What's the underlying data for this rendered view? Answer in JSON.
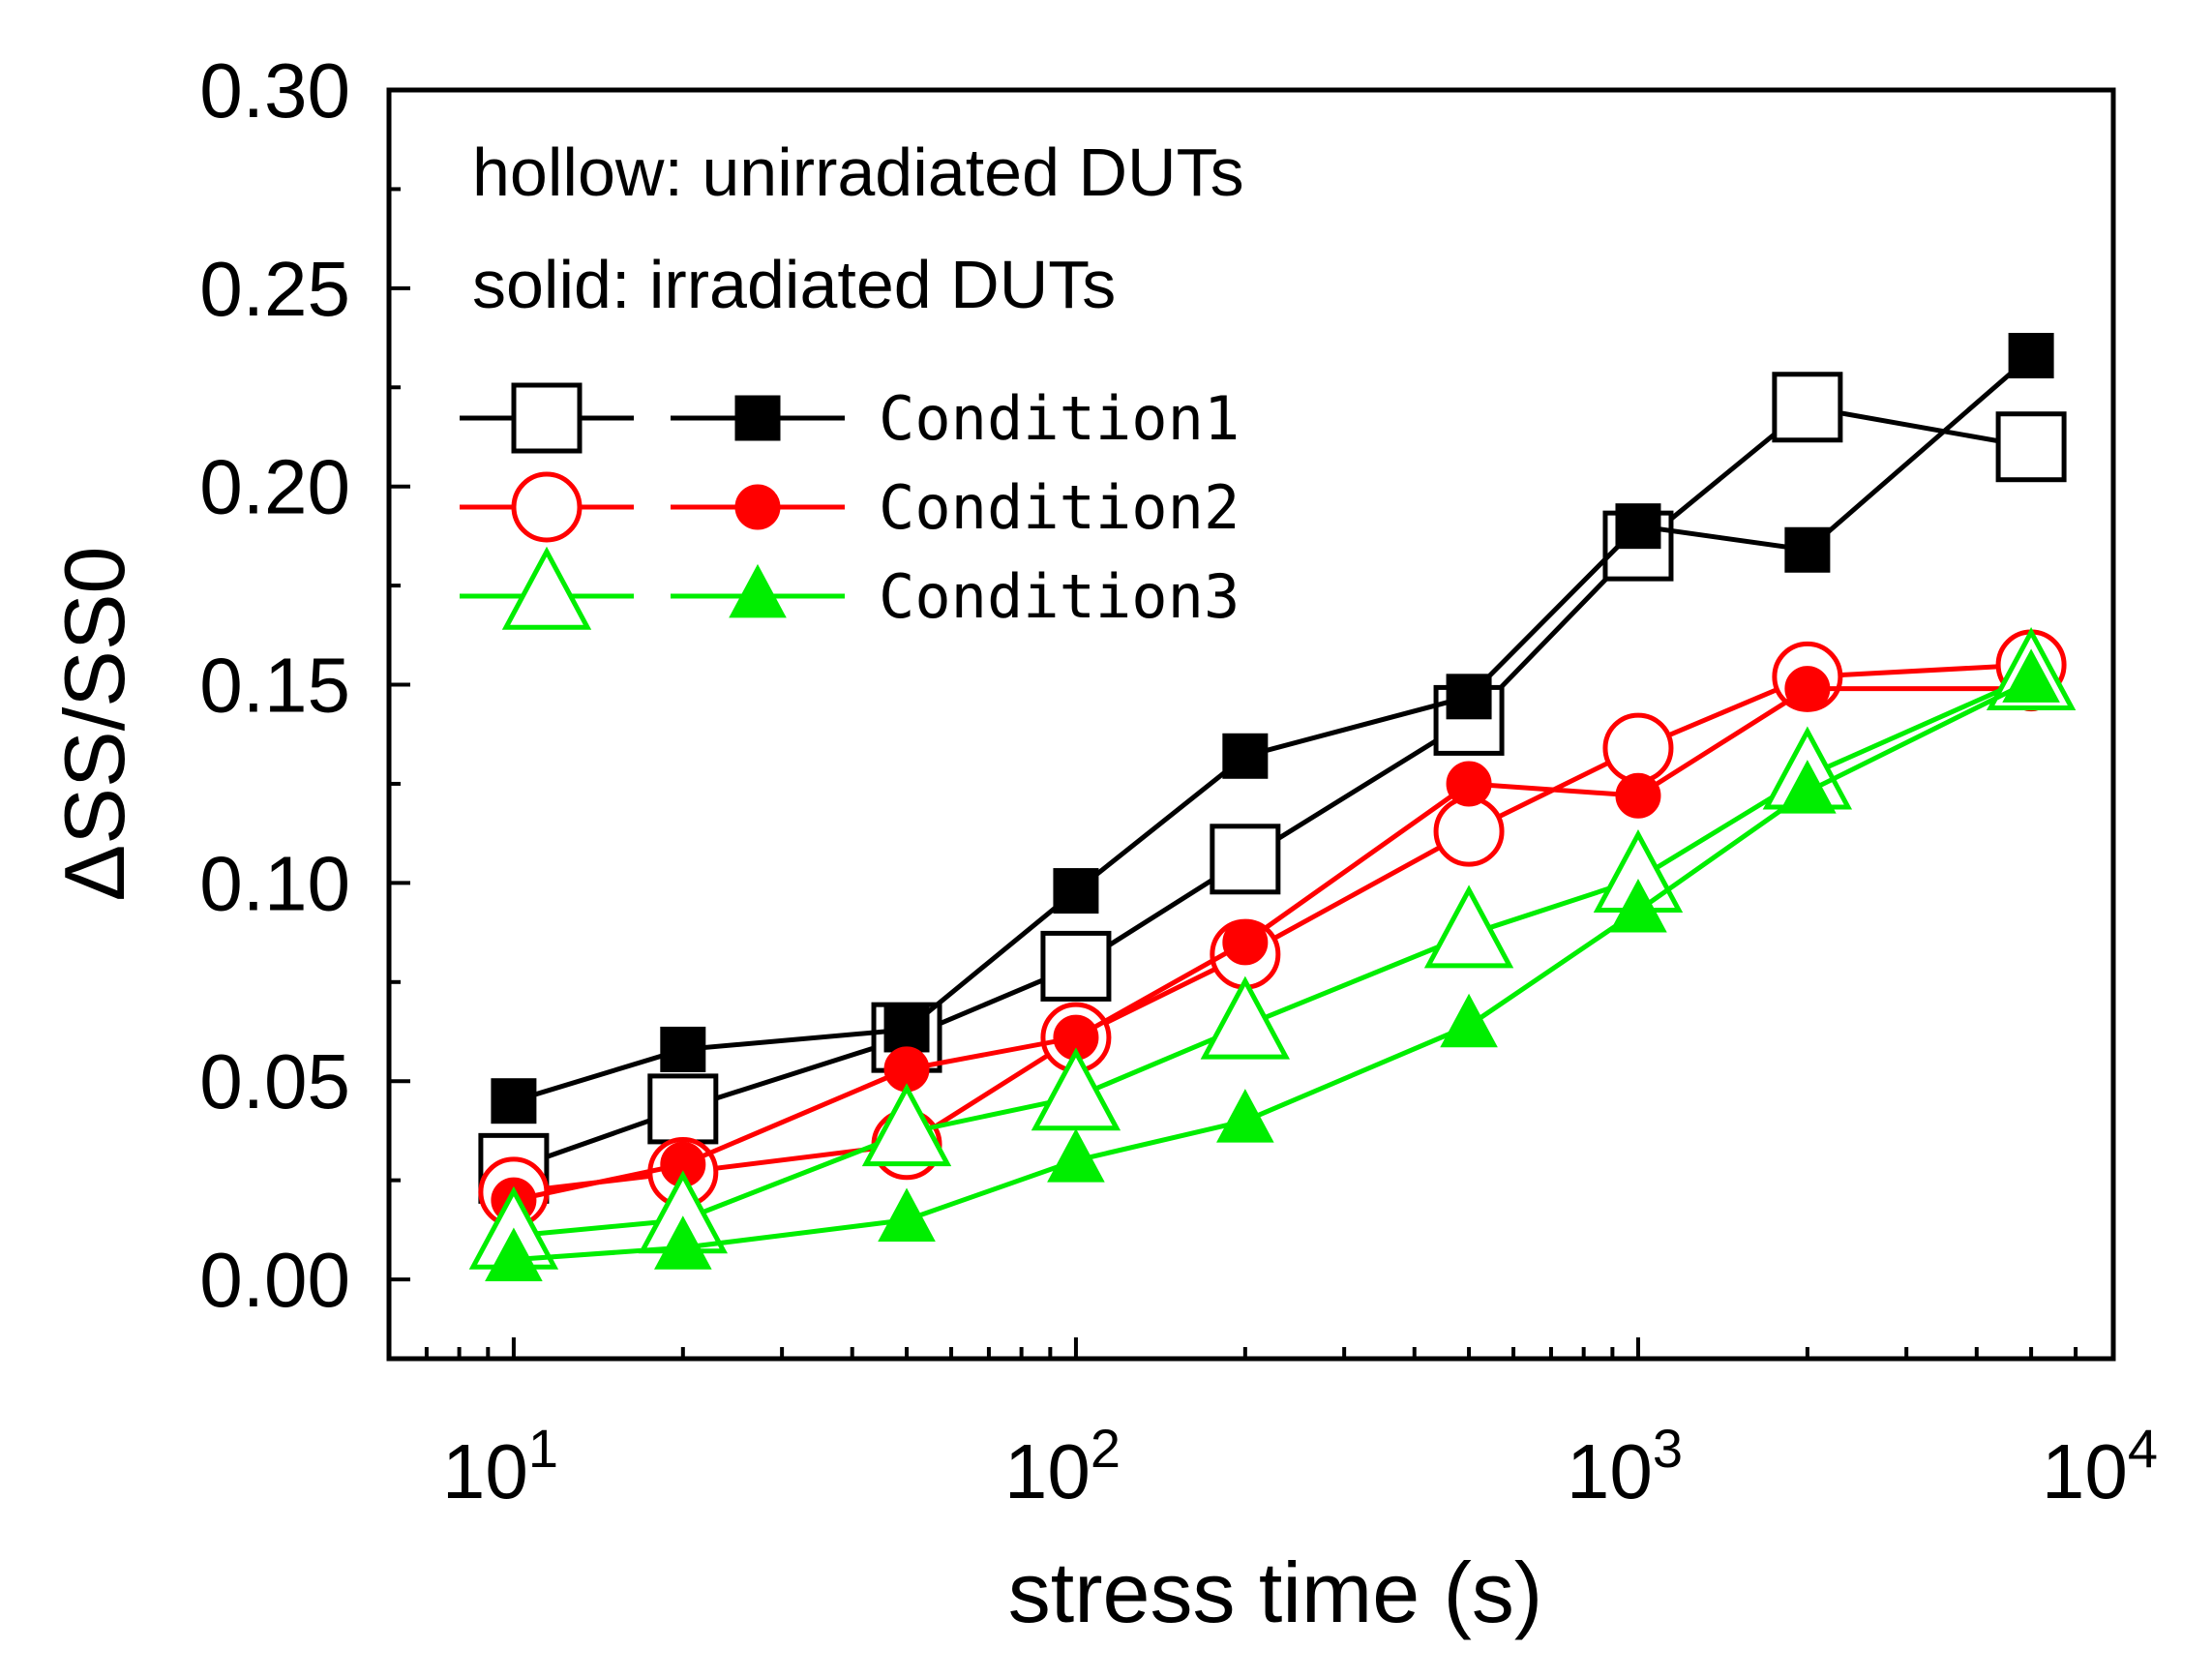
{
  "chart_data": {
    "type": "line",
    "xscale": "log",
    "xlabel": "stress time (s)",
    "ylabel": "ΔSS/SS0",
    "xlim": [
      6,
      7000
    ],
    "ylim": [
      -0.02,
      0.3
    ],
    "xticks": [
      {
        "value": 10,
        "base": "10",
        "exp": "1"
      },
      {
        "value": 100,
        "base": "10",
        "exp": "2"
      },
      {
        "value": 1000,
        "base": "10",
        "exp": "3"
      },
      {
        "value": 10000,
        "base": "10",
        "exp": "4"
      }
    ],
    "yticks": [
      {
        "value": 0.0,
        "label": "0.00"
      },
      {
        "value": 0.05,
        "label": "0.05"
      },
      {
        "value": 0.1,
        "label": "0.10"
      },
      {
        "value": 0.15,
        "label": "0.15"
      },
      {
        "value": 0.2,
        "label": "0.20"
      },
      {
        "value": 0.25,
        "label": "0.25"
      },
      {
        "value": 0.3,
        "label": "0.30"
      }
    ],
    "annotations": [
      "hollow: unirradiated DUTs",
      "solid: irradiated DUTs"
    ],
    "legend_position": "top-left",
    "x": [
      10,
      20,
      50,
      100,
      200,
      500,
      1000,
      2000,
      5000
    ],
    "series": [
      {
        "name": "Condition1",
        "style": "hollow",
        "marker": "square",
        "color": "#000000",
        "values": [
          0.028,
          0.043,
          0.061,
          0.079,
          0.106,
          0.141,
          0.185,
          0.22,
          0.21
        ]
      },
      {
        "name": "Condition1",
        "style": "solid",
        "marker": "square",
        "color": "#000000",
        "values": [
          0.045,
          0.058,
          0.063,
          0.098,
          0.132,
          0.147,
          0.19,
          0.184,
          0.233
        ]
      },
      {
        "name": "Condition2",
        "style": "hollow",
        "marker": "circle",
        "color": "#ff0000",
        "values": [
          0.022,
          0.027,
          0.034,
          0.061,
          0.082,
          0.113,
          0.134,
          0.152,
          0.155
        ]
      },
      {
        "name": "Condition2",
        "style": "solid",
        "marker": "circle",
        "color": "#ff0000",
        "values": [
          0.02,
          0.029,
          0.053,
          0.061,
          0.085,
          0.125,
          0.122,
          0.149,
          0.149
        ]
      },
      {
        "name": "Condition3",
        "style": "hollow",
        "marker": "triangle",
        "color": "#00ee00",
        "values": [
          0.011,
          0.015,
          0.037,
          0.046,
          0.064,
          0.087,
          0.101,
          0.127,
          0.152
        ]
      },
      {
        "name": "Condition3",
        "style": "solid",
        "marker": "triangle",
        "color": "#00ee00",
        "values": [
          0.005,
          0.008,
          0.015,
          0.03,
          0.04,
          0.064,
          0.093,
          0.123,
          0.151
        ]
      }
    ],
    "legend": [
      {
        "label": "Condition1",
        "color": "#000000",
        "marker": "square"
      },
      {
        "label": "Condition2",
        "color": "#ff0000",
        "marker": "circle"
      },
      {
        "label": "Condition3",
        "color": "#00ee00",
        "marker": "triangle"
      }
    ]
  }
}
